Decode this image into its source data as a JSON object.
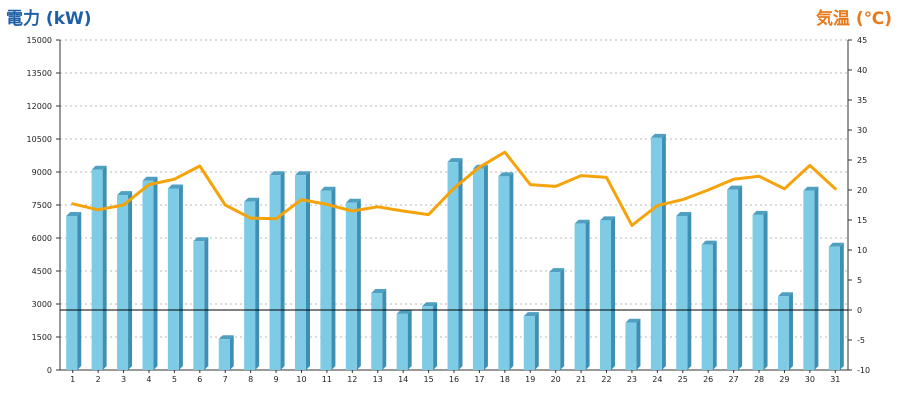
{
  "chart_data": {
    "type": "bar",
    "title": "",
    "xlabel": "",
    "ylabel": "電力 (kW)",
    "ylabel_right": "気温 (℃)",
    "categories": [
      "1",
      "2",
      "3",
      "4",
      "5",
      "6",
      "7",
      "8",
      "9",
      "10",
      "11",
      "12",
      "13",
      "14",
      "15",
      "16",
      "17",
      "18",
      "19",
      "20",
      "21",
      "22",
      "23",
      "24",
      "25",
      "26",
      "27",
      "28",
      "29",
      "30",
      "31"
    ],
    "ylim": [
      0,
      15000
    ],
    "yticks": [
      "0",
      "1500",
      "3000",
      "4500",
      "6000",
      "7500",
      "9000",
      "10500",
      "12000",
      "13500",
      "15000"
    ],
    "ylim_right": [
      -10,
      45
    ],
    "yticks_right": [
      "-10",
      "-5",
      "0",
      "5",
      "10",
      "15",
      "20",
      "25",
      "30",
      "35",
      "40",
      "45"
    ],
    "reference_line_right": 0,
    "grid": true,
    "series": [
      {
        "type": "bar",
        "axis": "left",
        "color": "#7ecbe5",
        "values": [
          7000,
          9100,
          7950,
          8600,
          8250,
          5850,
          1400,
          7650,
          8850,
          8850,
          8150,
          7600,
          3500,
          2550,
          2900,
          9450,
          9150,
          8800,
          2450,
          4450,
          6650,
          6800,
          2150,
          10550,
          7000,
          5700,
          8200,
          7050,
          3350,
          8150,
          5600
        ]
      },
      {
        "type": "line",
        "axis": "right",
        "color": "#f5a30a",
        "values": [
          17.7,
          16.7,
          17.5,
          20.9,
          21.8,
          24.0,
          17.5,
          15.3,
          15.2,
          18.4,
          17.6,
          16.5,
          17.2,
          16.5,
          15.9,
          20.3,
          23.8,
          26.3,
          20.9,
          20.6,
          22.4,
          22.1,
          14.1,
          17.4,
          18.4,
          20.0,
          21.8,
          22.3,
          20.2,
          24.1,
          20.2
        ]
      }
    ]
  }
}
